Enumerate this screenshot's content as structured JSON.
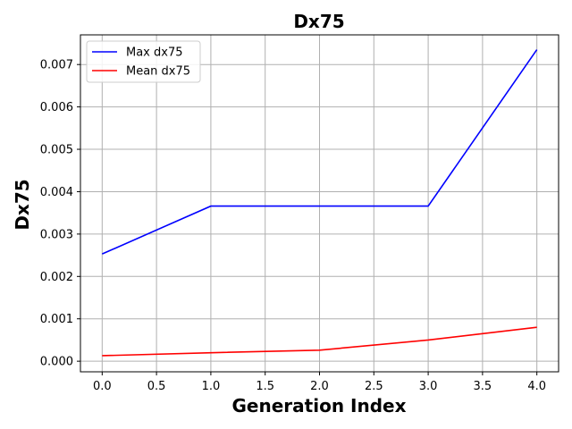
{
  "chart_data": {
    "type": "line",
    "title": "Dx75",
    "xlabel": "Generation Index",
    "ylabel": "Dx75",
    "x": [
      0,
      1,
      2,
      3,
      4
    ],
    "xlim": [
      -0.2,
      4.2
    ],
    "ylim": [
      -0.00025,
      0.0077
    ],
    "xticks": [
      0.0,
      0.5,
      1.0,
      1.5,
      2.0,
      2.5,
      3.0,
      3.5,
      4.0
    ],
    "xtick_labels": [
      "0.0",
      "0.5",
      "1.0",
      "1.5",
      "2.0",
      "2.5",
      "3.0",
      "3.5",
      "4.0"
    ],
    "yticks": [
      0.0,
      0.001,
      0.002,
      0.003,
      0.004,
      0.005,
      0.006,
      0.007
    ],
    "ytick_labels": [
      "0.000",
      "0.001",
      "0.002",
      "0.003",
      "0.004",
      "0.005",
      "0.006",
      "0.007"
    ],
    "grid": true,
    "legend_position": "top-left",
    "series": [
      {
        "name": "Max dx75",
        "color": "#0000ff",
        "values": [
          0.00253,
          0.00366,
          0.00366,
          0.00366,
          0.00735
        ]
      },
      {
        "name": "Mean dx75",
        "color": "#ff0000",
        "values": [
          0.00013,
          0.0002,
          0.00026,
          0.0005,
          0.0008
        ]
      }
    ]
  }
}
